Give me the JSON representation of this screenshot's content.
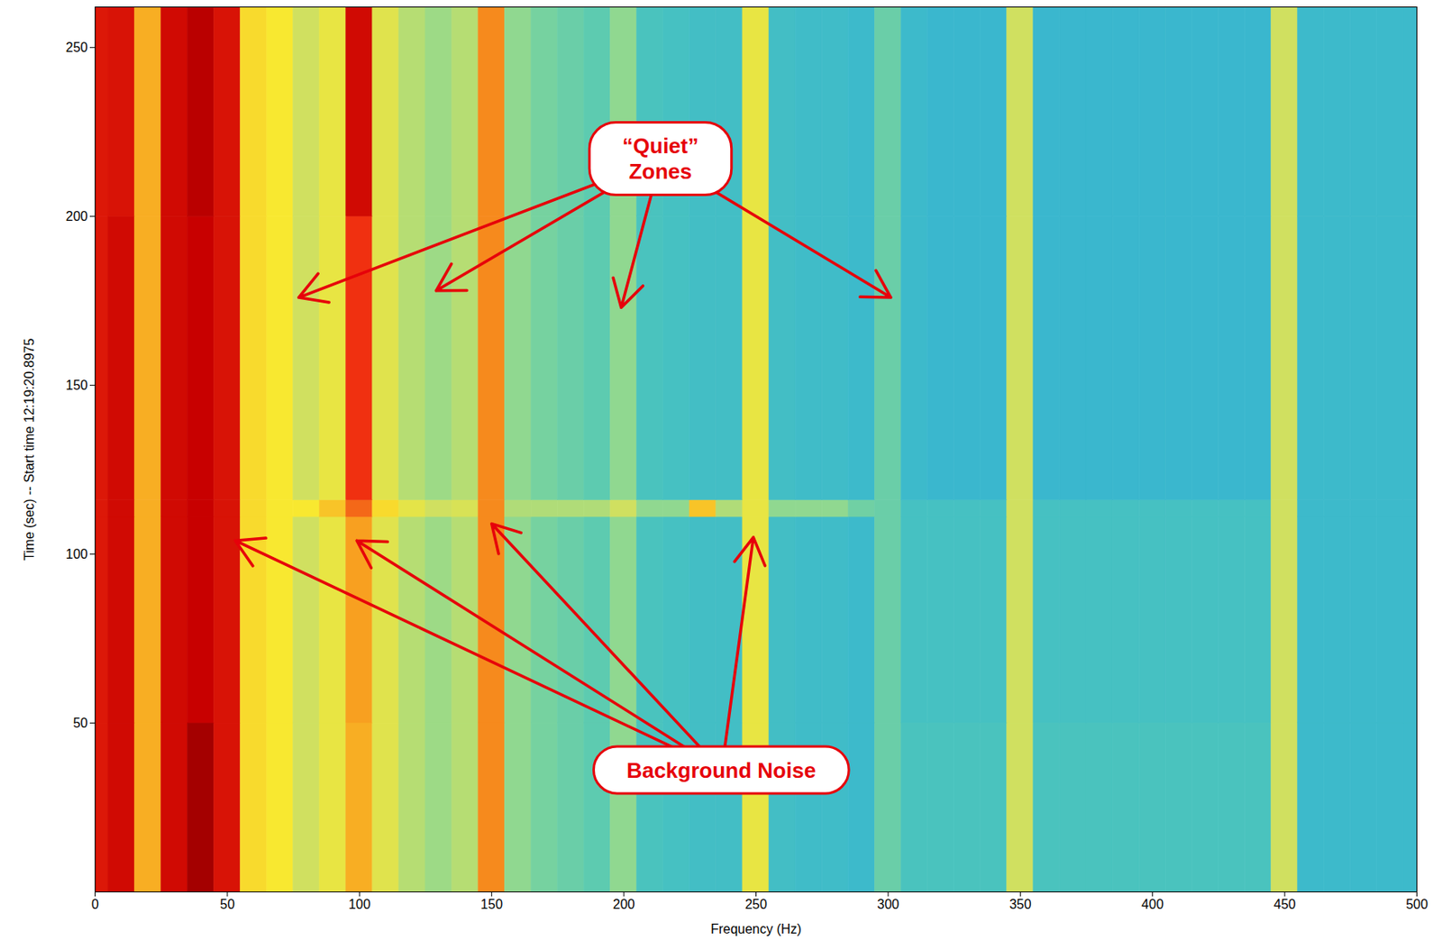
{
  "chart_data": {
    "type": "heatmap",
    "xlabel": "Frequency (Hz)",
    "ylabel": "Time (sec) -- Start time 12:19:20.8975",
    "xlim": [
      0,
      500
    ],
    "ylim": [
      0,
      262
    ],
    "xticks": [
      0,
      50,
      100,
      150,
      200,
      250,
      300,
      350,
      400,
      450,
      500
    ],
    "yticks": [
      50,
      100,
      150,
      200,
      250
    ],
    "grid": false,
    "x_bins": [
      0,
      5,
      15,
      25,
      35,
      45,
      55,
      65,
      75,
      85,
      95,
      105,
      115,
      125,
      135,
      145,
      155,
      165,
      175,
      185,
      195,
      205,
      215,
      225,
      235,
      245,
      255,
      265,
      275,
      285,
      295,
      305,
      315,
      325,
      335,
      345,
      355,
      365,
      375,
      385,
      395,
      405,
      415,
      425,
      435,
      445,
      455,
      465,
      475,
      485,
      495,
      500
    ],
    "y_bins": [
      0,
      50,
      111,
      116,
      200,
      262
    ],
    "zlim": [
      0,
      10
    ],
    "cells": [
      [
        8.5,
        8.8,
        6.8,
        8.8,
        9.5,
        8.6,
        6.2,
        6.0,
        5.0,
        5.6,
        6.8,
        5.4,
        4.6,
        4.2,
        4.6,
        7.2,
        4.0,
        3.6,
        3.4,
        3.2,
        4.0,
        2.8,
        2.7,
        2.6,
        2.6,
        5.6,
        2.6,
        2.5,
        2.5,
        2.4,
        3.4,
        2.8,
        2.8,
        2.8,
        2.8,
        5.0,
        2.8,
        2.8,
        2.8,
        2.8,
        2.8,
        2.8,
        2.8,
        2.8,
        2.8,
        5.0,
        2.4,
        2.4,
        2.4,
        2.4,
        2.4
      ],
      [
        8.5,
        8.8,
        6.8,
        8.8,
        9.0,
        8.6,
        6.2,
        6.0,
        5.0,
        5.6,
        7.0,
        5.4,
        4.6,
        4.2,
        4.6,
        7.2,
        4.0,
        3.6,
        3.4,
        3.2,
        4.0,
        2.8,
        2.7,
        2.6,
        2.6,
        5.6,
        2.6,
        2.5,
        2.5,
        2.4,
        3.4,
        2.7,
        2.7,
        2.7,
        2.7,
        5.0,
        2.7,
        2.7,
        2.7,
        2.7,
        2.7,
        2.7,
        2.7,
        2.7,
        2.7,
        5.0,
        2.4,
        2.4,
        2.4,
        2.4,
        2.4
      ],
      [
        8.5,
        8.8,
        6.8,
        8.8,
        9.0,
        8.6,
        6.2,
        6.0,
        6.0,
        6.5,
        7.5,
        6.2,
        5.5,
        5.0,
        5.2,
        7.2,
        4.5,
        4.5,
        4.5,
        4.5,
        5.0,
        4.0,
        4.0,
        6.5,
        4.5,
        5.6,
        4.0,
        4.0,
        4.0,
        3.5,
        3.4,
        2.7,
        2.7,
        2.7,
        2.7,
        5.0,
        2.7,
        2.7,
        2.7,
        2.7,
        2.7,
        2.7,
        2.7,
        2.7,
        2.7,
        5.0,
        2.4,
        2.4,
        2.4,
        2.4,
        2.4
      ],
      [
        8.5,
        8.8,
        6.8,
        8.8,
        9.0,
        8.6,
        6.2,
        6.0,
        5.0,
        5.6,
        8.0,
        5.4,
        4.6,
        4.2,
        4.6,
        7.2,
        4.0,
        3.6,
        3.4,
        3.2,
        4.0,
        2.8,
        2.7,
        2.6,
        2.6,
        5.6,
        2.6,
        2.5,
        2.5,
        2.4,
        3.4,
        2.4,
        2.3,
        2.3,
        2.3,
        5.0,
        2.3,
        2.3,
        2.3,
        2.3,
        2.3,
        2.3,
        2.3,
        2.3,
        2.3,
        5.0,
        2.4,
        2.4,
        2.4,
        2.4,
        2.4
      ],
      [
        8.5,
        8.6,
        6.8,
        8.8,
        9.2,
        8.6,
        6.2,
        6.0,
        5.0,
        5.6,
        8.8,
        5.4,
        4.6,
        4.2,
        4.6,
        7.2,
        4.0,
        3.6,
        3.4,
        3.2,
        4.0,
        2.8,
        2.7,
        2.6,
        2.6,
        5.6,
        2.6,
        2.5,
        2.5,
        2.4,
        3.4,
        2.4,
        2.3,
        2.3,
        2.3,
        5.0,
        2.3,
        2.3,
        2.3,
        2.3,
        2.3,
        2.3,
        2.3,
        2.3,
        2.3,
        5.0,
        2.4,
        2.4,
        2.4,
        2.4,
        2.4
      ]
    ],
    "annotations": [
      {
        "text": [
          "“Quiet”",
          "Zones"
        ],
        "x": 214,
        "y": 217,
        "targets": [
          [
            77,
            176
          ],
          [
            129,
            178
          ],
          [
            199,
            173
          ],
          [
            301,
            176
          ]
        ]
      },
      {
        "text": [
          "Background Noise"
        ],
        "x": 237,
        "y": 36,
        "targets": [
          [
            53,
            104
          ],
          [
            99,
            104
          ],
          [
            150,
            109
          ],
          [
            249,
            105
          ]
        ]
      }
    ]
  }
}
